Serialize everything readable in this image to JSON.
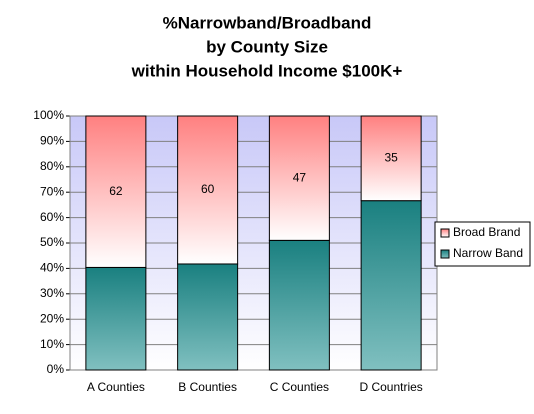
{
  "chart_data": {
    "type": "percent_stacked_bar",
    "title": [
      "%Narrowband/Broadband",
      "by County Size",
      "within Household Income $100K+"
    ],
    "categories": [
      "A Counties",
      "B Counties",
      "C Counties",
      "D Countries"
    ],
    "series": [
      {
        "name": "Narrow Band",
        "color": "#1a8080",
        "values": [
          42,
          43,
          49,
          70
        ],
        "labels": false
      },
      {
        "name": "Broad Brand",
        "color": "#ff8080",
        "values": [
          62,
          60,
          47,
          35
        ],
        "labels": true
      }
    ],
    "ylim": [
      0,
      100
    ],
    "yticks": [
      {
        "value": 0,
        "label": "0%"
      },
      {
        "value": 10,
        "label": "10%"
      },
      {
        "value": 20,
        "label": "20%"
      },
      {
        "value": 30,
        "label": "30%"
      },
      {
        "value": 40,
        "label": "40%"
      },
      {
        "value": 50,
        "label": "50%"
      },
      {
        "value": 60,
        "label": "60%"
      },
      {
        "value": 70,
        "label": "70%"
      },
      {
        "value": 80,
        "label": "80%"
      },
      {
        "value": 90,
        "label": "90%"
      },
      {
        "value": 100,
        "label": "100%"
      }
    ],
    "grid": true,
    "legend": "right"
  }
}
